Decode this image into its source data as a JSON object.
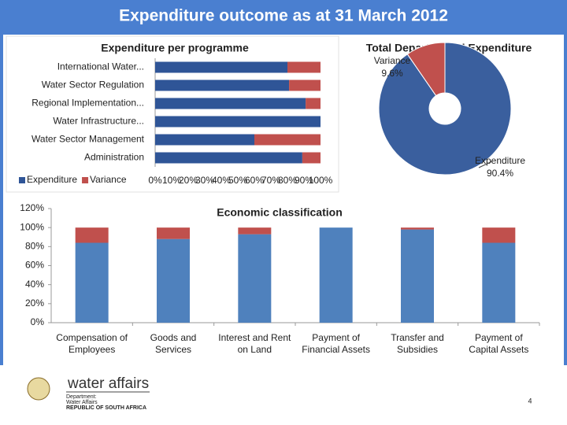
{
  "slide": {
    "title": "Expenditure outcome as at 31 March 2012",
    "logo_name": "water affairs",
    "logo_lines": [
      "Department:",
      "Water Affairs",
      "REPUBLIC OF SOUTH AFRICA"
    ],
    "page_number": "4"
  },
  "chart_data": [
    {
      "type": "bar",
      "horizontal": true,
      "stacked": true,
      "title": "Expenditure per programme",
      "categories": [
        "International Water...",
        "Water Sector Regulation",
        "Regional Implementation...",
        "Water Infrastructure...",
        "Water Sector Management",
        "Administration"
      ],
      "series": [
        {
          "name": "Expenditure",
          "color": "#2f5597",
          "values": [
            80,
            81,
            91,
            100,
            60,
            89
          ]
        },
        {
          "name": "Variance",
          "color": "#c0504d",
          "values": [
            20,
            19,
            9,
            0,
            40,
            11
          ]
        }
      ],
      "xlim": [
        0,
        100
      ],
      "xticks": [
        {
          "value": 0,
          "label": "0%"
        },
        {
          "value": 10,
          "label": "10%"
        },
        {
          "value": 20,
          "label": "20%"
        },
        {
          "value": 30,
          "label": "30%"
        },
        {
          "value": 40,
          "label": "40%"
        },
        {
          "value": 50,
          "label": "50%"
        },
        {
          "value": 60,
          "label": "60%"
        },
        {
          "value": 70,
          "label": "70%"
        },
        {
          "value": 80,
          "label": "80%"
        },
        {
          "value": 90,
          "label": "90%"
        },
        {
          "value": 100,
          "label": "100%"
        }
      ],
      "legend": "bottom-left"
    },
    {
      "type": "donut",
      "title": "Total Departmental Expenditure",
      "categories": [
        "Expenditure",
        "Variance"
      ],
      "values": [
        90.4,
        9.6
      ],
      "value_labels": [
        "90.4%",
        "9.6%"
      ],
      "colors": [
        "#3a5f9e",
        "#c0504d"
      ]
    },
    {
      "type": "bar",
      "horizontal": false,
      "stacked": true,
      "title": "Economic classification",
      "categories": [
        "Compensation of Employees",
        "Goods and Services",
        "Interest and Rent on Land",
        "Payment of Financial Assets",
        "Transfer and Subsidies",
        "Payment of Capital Assets"
      ],
      "series": [
        {
          "name": "Expenditure",
          "color": "#4f81bd",
          "values": [
            84,
            88,
            93,
            100,
            98,
            84
          ]
        },
        {
          "name": "Variance",
          "color": "#c0504d",
          "values": [
            16,
            12,
            7,
            0,
            2,
            16
          ]
        }
      ],
      "ylim": [
        0,
        120
      ],
      "yticks": [
        {
          "value": 0,
          "label": "0%"
        },
        {
          "value": 20,
          "label": "20%"
        },
        {
          "value": 40,
          "label": "40%"
        },
        {
          "value": 60,
          "label": "60%"
        },
        {
          "value": 80,
          "label": "80%"
        },
        {
          "value": 100,
          "label": "100%"
        },
        {
          "value": 120,
          "label": "120%"
        }
      ],
      "legend": null
    }
  ]
}
